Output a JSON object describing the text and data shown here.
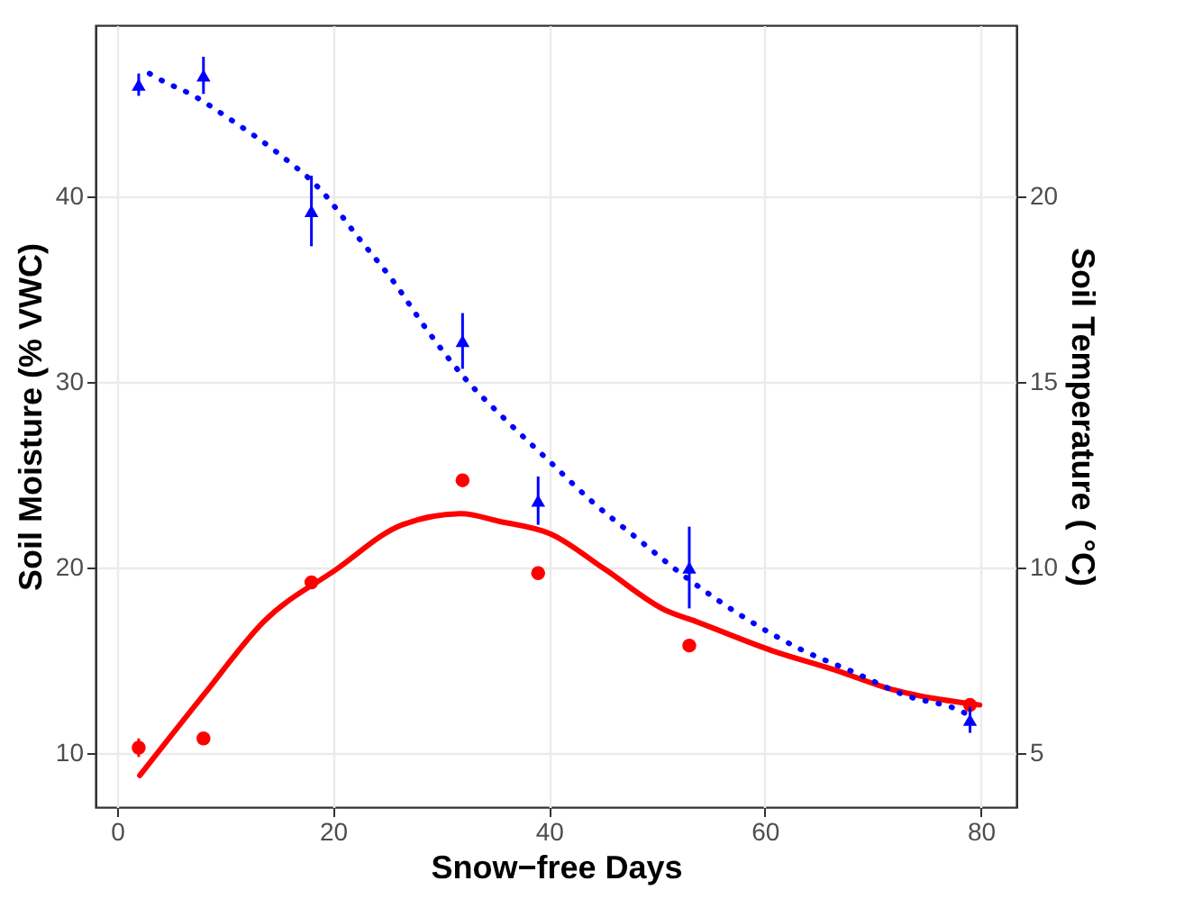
{
  "chart_data": {
    "type": "scatter",
    "xlabel": "Snow−free Days",
    "ylabel": "Soil Moisture (% VWC)",
    "y2label": "Soil Temperature ( °C)",
    "xlim": [
      -2,
      83.3
    ],
    "xticks": [
      0,
      20,
      40,
      60,
      80
    ],
    "ylim": [
      7.1,
      49.2
    ],
    "yticks": [
      10,
      20,
      30,
      40
    ],
    "y2lim": [
      3.55,
      24.6
    ],
    "y2ticks": [
      5,
      10,
      15,
      20
    ],
    "grid": true,
    "series": [
      {
        "color": "#ff0000",
        "marker": "circle",
        "x": [
          2,
          8,
          18,
          32,
          39,
          53,
          79
        ],
        "values": [
          10.3,
          10.8,
          19.2,
          24.7,
          19.7,
          15.8,
          12.6
        ],
        "errors": [
          0.5,
          0.3,
          null,
          null,
          null,
          null,
          null
        ]
      },
      {
        "type": "line",
        "color": "#ff0000",
        "line_style": "solid",
        "marker": "none",
        "x": [
          2.1,
          8.1,
          13.6,
          20.3,
          26.4,
          31.9,
          35.3,
          40.2,
          45.2,
          50.8,
          53.6,
          60.8,
          66.4,
          71.4,
          79.9
        ],
        "values": [
          8.8,
          13.2,
          17.1,
          19.9,
          22.3,
          22.9,
          22.5,
          21.8,
          19.9,
          17.7,
          17.1,
          15.5,
          14.5,
          13.5,
          12.6
        ]
      },
      {
        "color": "#0000ff",
        "marker": "triangle",
        "axis": "y2",
        "x": [
          2,
          8,
          18,
          32,
          39,
          53,
          79
        ],
        "values": [
          23.0,
          23.25,
          19.6,
          16.1,
          11.8,
          10.0,
          5.9
        ],
        "errors": [
          0.3,
          0.5,
          0.95,
          0.75,
          0.65,
          1.1,
          0.35
        ]
      },
      {
        "type": "line",
        "color": "#0000ff",
        "line_style": "dotted",
        "marker": "none",
        "axis": "y2",
        "x": [
          3.0,
          3.9,
          7.1,
          10.3,
          14.7,
          18.9,
          22.3,
          25.6,
          28.7,
          32.2,
          35.9,
          39.9,
          43.9,
          48.1,
          52.4,
          58.4,
          63.3,
          68.1,
          73.1,
          78.4,
          79.0
        ],
        "values": [
          23.3,
          23.15,
          22.7,
          22.1,
          21.2,
          20.15,
          18.9,
          17.7,
          16.4,
          15.1,
          14.0,
          12.9,
          11.8,
          10.8,
          9.8,
          8.6,
          7.8,
          7.2,
          6.55,
          6.1,
          6.0
        ]
      }
    ]
  }
}
